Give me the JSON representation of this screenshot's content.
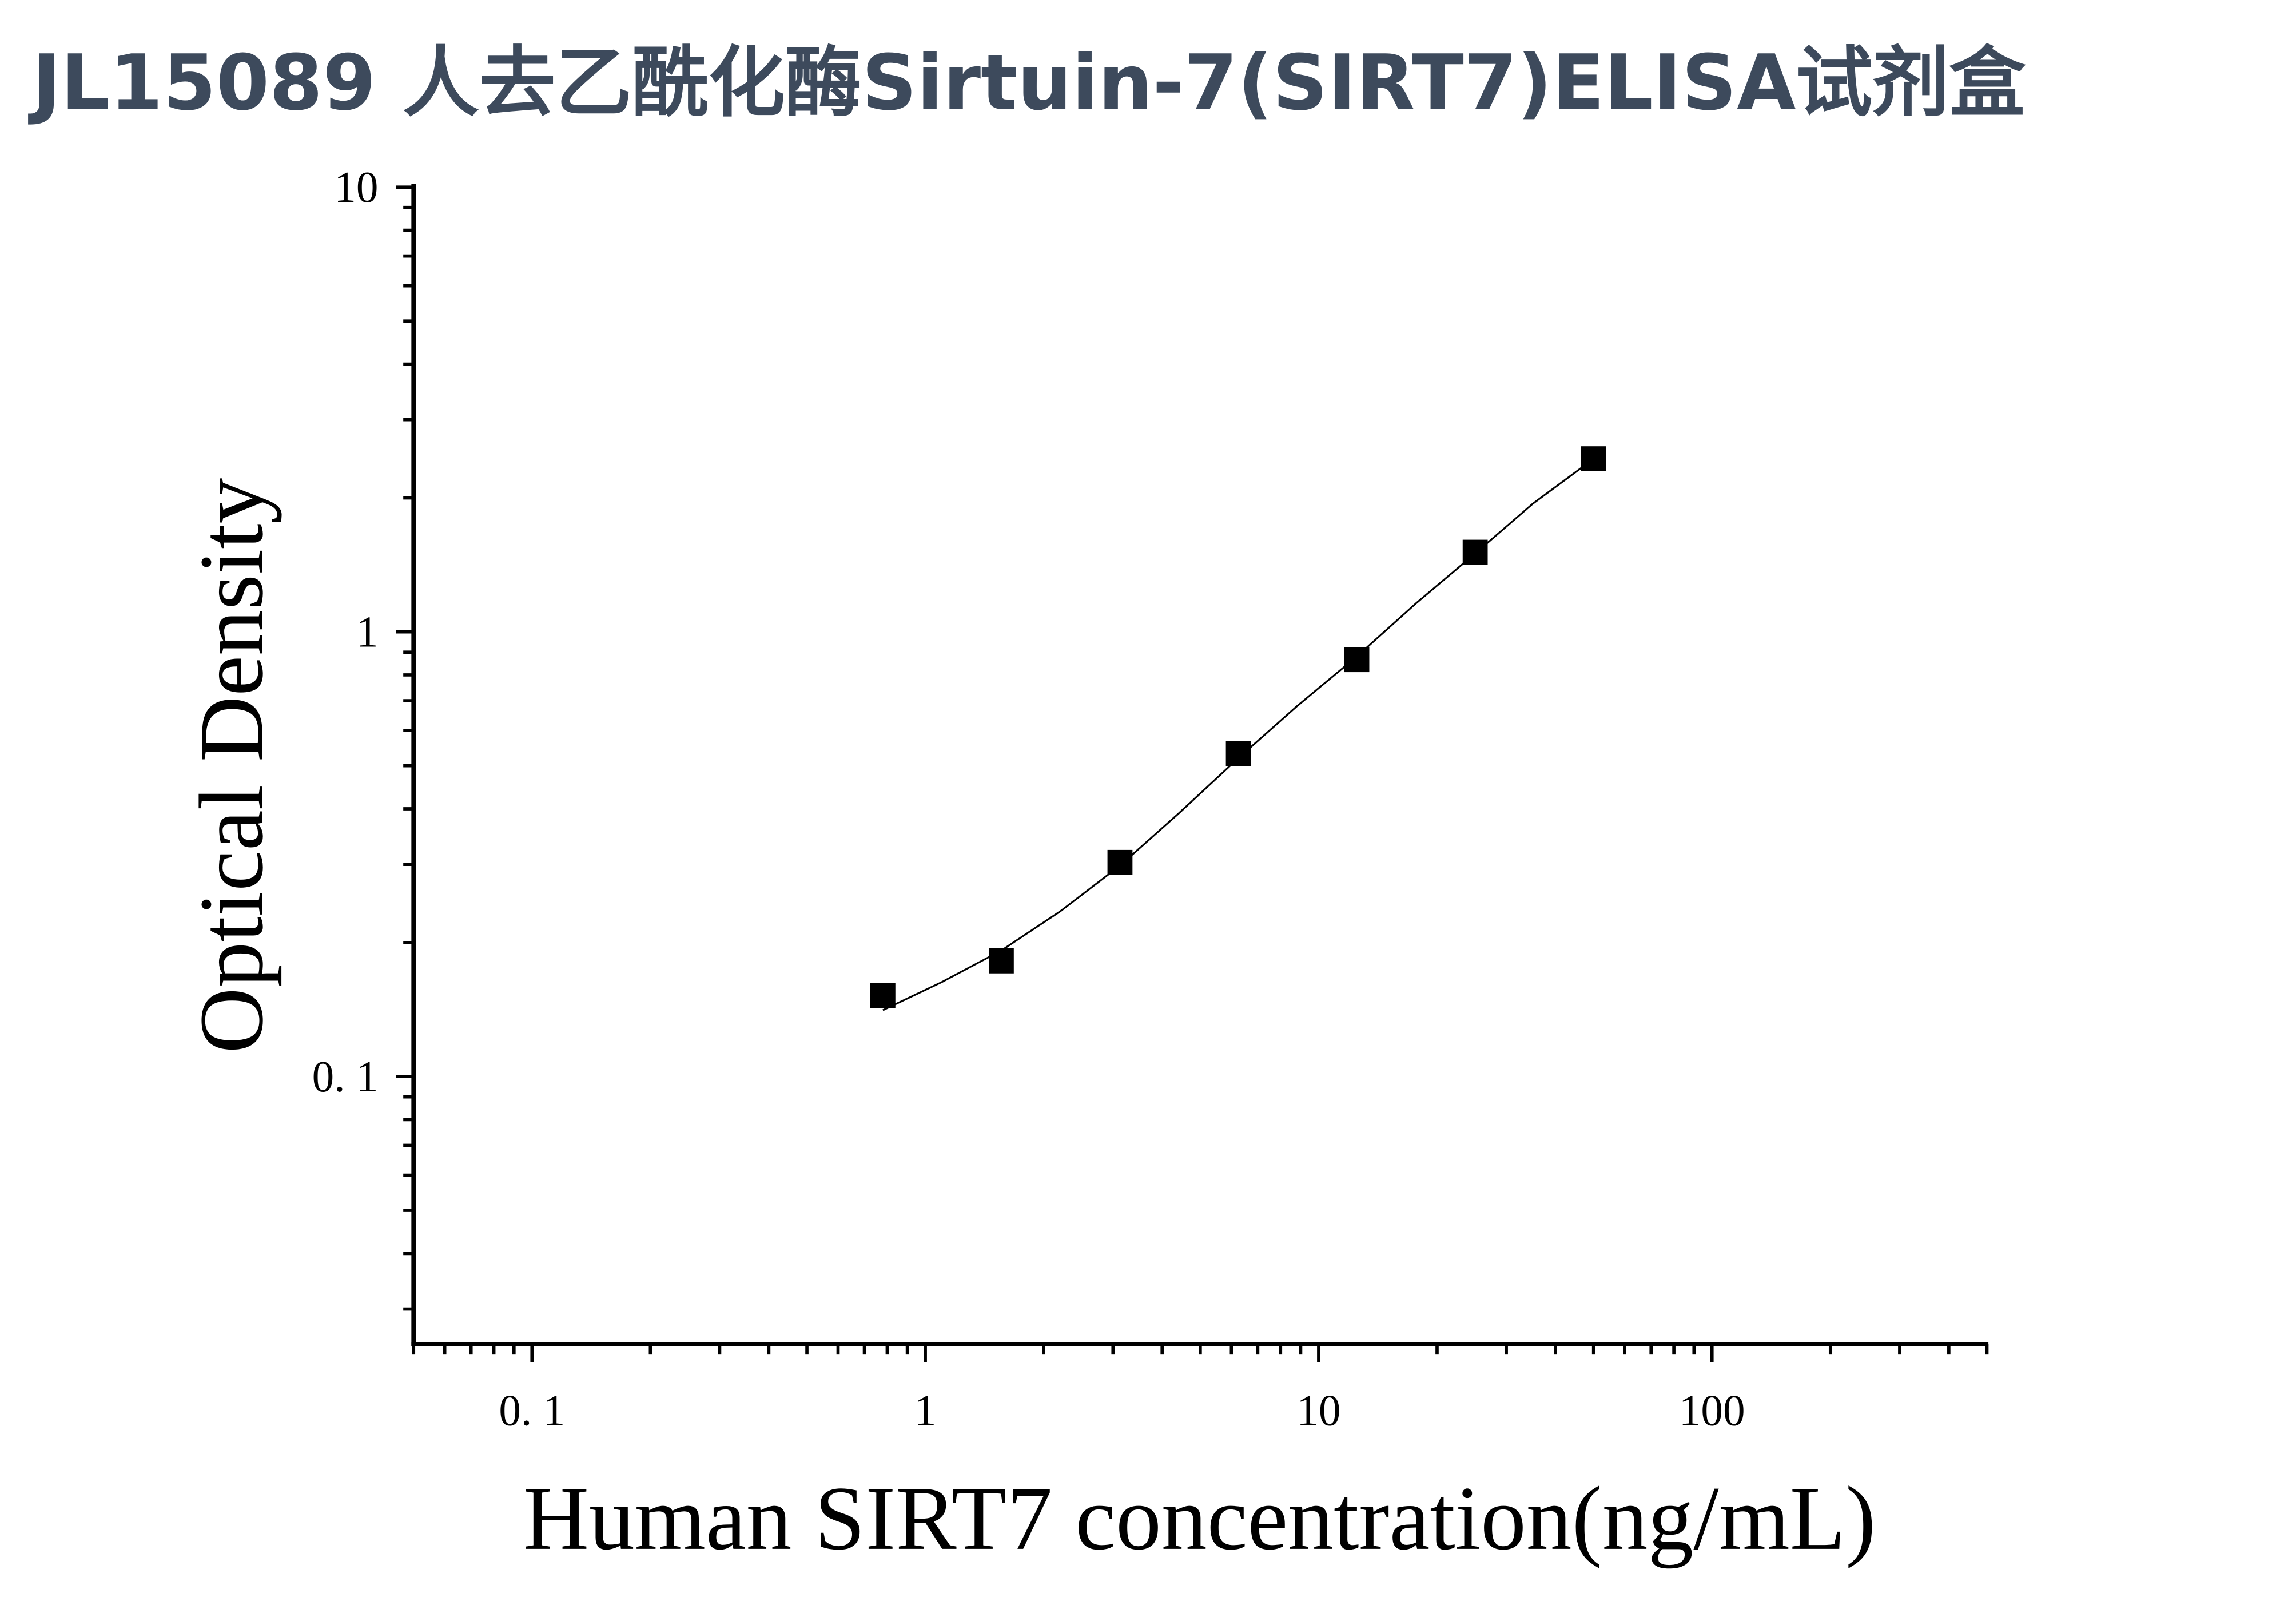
{
  "chart_data": {
    "type": "scatter",
    "title": "JL15089 人去乙酰化酶Sirtuin-7(SIRT7)ELISA试剂盒",
    "x_label": "Human SIRT7 concentration(ng/mL)",
    "y_label": "Optical Density",
    "x_log": true,
    "y_log": true,
    "xlim": [
      0.05,
      500
    ],
    "ylim": [
      0.025,
      10
    ],
    "xticks": [
      {
        "value": 0.1,
        "label": "0. 1"
      },
      1,
      10,
      100
    ],
    "yticks": [
      {
        "value": 0.1,
        "label": "0. 1"
      },
      1,
      10
    ],
    "xticks_minor": [
      0.05,
      0.06,
      0.07,
      0.08,
      0.09,
      0.2,
      0.3,
      0.4,
      0.5,
      0.6,
      0.7,
      0.8,
      0.9,
      2,
      3,
      4,
      5,
      6,
      7,
      8,
      9,
      20,
      30,
      40,
      50,
      60,
      70,
      80,
      90,
      200,
      300,
      400,
      500
    ],
    "yticks_minor": [
      0.03,
      0.04,
      0.05,
      0.06,
      0.07,
      0.08,
      0.09,
      0.2,
      0.3,
      0.4,
      0.5,
      0.6,
      0.7,
      0.8,
      0.9,
      2,
      3,
      4,
      5,
      6,
      7,
      8,
      9
    ],
    "series": [
      {
        "type": "scatter",
        "color": "#000000",
        "x": [
          0.78,
          1.56,
          3.125,
          6.25,
          12.5,
          25,
          50
        ],
        "values": [
          0.152,
          0.182,
          0.303,
          0.532,
          0.866,
          1.51,
          2.45
        ]
      },
      {
        "type": "line",
        "color": "#000000",
        "x": [
          0.78,
          1.1,
          1.56,
          2.2,
          3.125,
          4.4,
          6.25,
          8.8,
          12.5,
          17.7,
          25,
          35,
          50
        ],
        "values": [
          0.141,
          0.163,
          0.192,
          0.235,
          0.298,
          0.39,
          0.52,
          0.68,
          0.88,
          1.16,
          1.5,
          1.94,
          2.45
        ]
      }
    ]
  }
}
